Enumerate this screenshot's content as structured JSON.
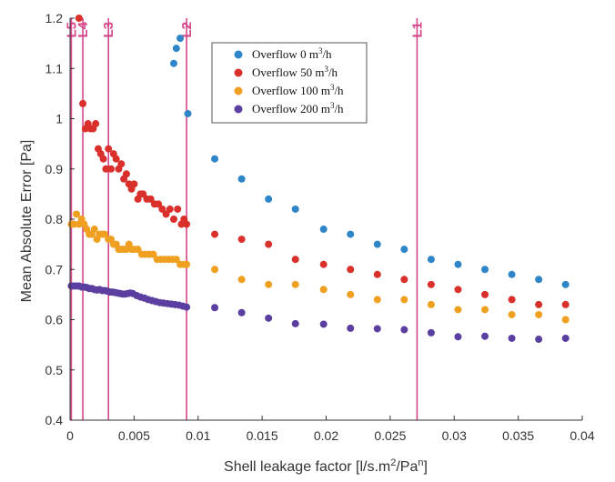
{
  "chart_data": {
    "type": "scatter",
    "xlabel": "Shell leakage factor [l/s.m",
    "xlabel_sup1": "2",
    "xlabel_mid": "/Pa",
    "xlabel_sup2": "n",
    "xlabel_end": "]",
    "ylabel": "Mean Absolute Error [Pa]",
    "xlim": [
      0,
      0.04
    ],
    "ylim": [
      0.4,
      1.2
    ],
    "x_ticks": [
      0,
      0.005,
      0.01,
      0.015,
      0.02,
      0.025,
      0.03,
      0.035,
      0.04
    ],
    "x_tick_labels": [
      "0",
      "0.005",
      "0.01",
      "0.015",
      "0.02",
      "0.025",
      "0.03",
      "0.035",
      "0.04"
    ],
    "y_ticks": [
      0.4,
      0.5,
      0.6,
      0.7,
      0.8,
      0.9,
      1.0,
      1.1,
      1.2
    ],
    "y_tick_labels": [
      "0.4",
      "0.5",
      "0.6",
      "0.7",
      "0.8",
      "0.9",
      "1",
      "1.1",
      "1.2"
    ],
    "grid": false,
    "legend_position": "top-center",
    "vertical_lines": [
      {
        "label": "L5",
        "x": 0.0001
      },
      {
        "label": "L4",
        "x": 0.001
      },
      {
        "label": "L3",
        "x": 0.003
      },
      {
        "label": "L2",
        "x": 0.0091
      },
      {
        "label": "L1",
        "x": 0.0271
      }
    ],
    "series": [
      {
        "name_prefix": "Overflow 0 m",
        "name_sup": "3",
        "name_suffix": "/h",
        "color": "#2e86c8",
        "points": [
          [
            0.0081,
            1.11
          ],
          [
            0.0083,
            1.14
          ],
          [
            0.0086,
            1.16
          ],
          [
            0.0092,
            1.01
          ],
          [
            0.0113,
            0.92
          ],
          [
            0.0134,
            0.88
          ],
          [
            0.0155,
            0.84
          ],
          [
            0.0176,
            0.82
          ],
          [
            0.0198,
            0.78
          ],
          [
            0.0219,
            0.77
          ],
          [
            0.024,
            0.75
          ],
          [
            0.0261,
            0.74
          ],
          [
            0.0282,
            0.72
          ],
          [
            0.0303,
            0.71
          ],
          [
            0.0324,
            0.7
          ],
          [
            0.0345,
            0.69
          ],
          [
            0.0366,
            0.68
          ],
          [
            0.0387,
            0.67
          ]
        ]
      },
      {
        "name_prefix": "Overflow 50 m",
        "name_sup": "3",
        "name_suffix": "/h",
        "color": "#d9302b",
        "points": [
          [
            0.0007,
            1.2
          ],
          [
            0.001,
            1.03
          ],
          [
            0.0012,
            0.98
          ],
          [
            0.0014,
            0.99
          ],
          [
            0.0016,
            0.98
          ],
          [
            0.0018,
            0.98
          ],
          [
            0.002,
            0.99
          ],
          [
            0.0022,
            0.94
          ],
          [
            0.0024,
            0.93
          ],
          [
            0.0026,
            0.92
          ],
          [
            0.0028,
            0.9
          ],
          [
            0.003,
            0.94
          ],
          [
            0.0032,
            0.9
          ],
          [
            0.0034,
            0.93
          ],
          [
            0.0036,
            0.92
          ],
          [
            0.0038,
            0.9
          ],
          [
            0.004,
            0.91
          ],
          [
            0.0042,
            0.88
          ],
          [
            0.0044,
            0.89
          ],
          [
            0.0046,
            0.87
          ],
          [
            0.0048,
            0.86
          ],
          [
            0.005,
            0.87
          ],
          [
            0.0053,
            0.84
          ],
          [
            0.0055,
            0.85
          ],
          [
            0.0057,
            0.85
          ],
          [
            0.006,
            0.84
          ],
          [
            0.0063,
            0.84
          ],
          [
            0.0066,
            0.83
          ],
          [
            0.0069,
            0.83
          ],
          [
            0.0072,
            0.82
          ],
          [
            0.0075,
            0.81
          ],
          [
            0.0078,
            0.82
          ],
          [
            0.0081,
            0.8
          ],
          [
            0.0084,
            0.82
          ],
          [
            0.0087,
            0.79
          ],
          [
            0.0089,
            0.8
          ],
          [
            0.0091,
            0.79
          ],
          [
            0.0113,
            0.77
          ],
          [
            0.0134,
            0.76
          ],
          [
            0.0155,
            0.75
          ],
          [
            0.0176,
            0.72
          ],
          [
            0.0198,
            0.71
          ],
          [
            0.0219,
            0.7
          ],
          [
            0.024,
            0.69
          ],
          [
            0.0261,
            0.68
          ],
          [
            0.0282,
            0.67
          ],
          [
            0.0303,
            0.66
          ],
          [
            0.0324,
            0.65
          ],
          [
            0.0345,
            0.64
          ],
          [
            0.0366,
            0.63
          ],
          [
            0.0387,
            0.63
          ]
        ]
      },
      {
        "name_prefix": "Overflow 100 m",
        "name_sup": "3",
        "name_suffix": "/h",
        "color": "#f0a020",
        "points": [
          [
            0.0001,
            0.79
          ],
          [
            0.0003,
            0.79
          ],
          [
            0.0005,
            0.81
          ],
          [
            0.0007,
            0.79
          ],
          [
            0.0009,
            0.8
          ],
          [
            0.0011,
            0.79
          ],
          [
            0.0013,
            0.78
          ],
          [
            0.0015,
            0.77
          ],
          [
            0.0017,
            0.77
          ],
          [
            0.0019,
            0.78
          ],
          [
            0.0021,
            0.76
          ],
          [
            0.0023,
            0.77
          ],
          [
            0.0025,
            0.77
          ],
          [
            0.0027,
            0.77
          ],
          [
            0.003,
            0.76
          ],
          [
            0.0032,
            0.76
          ],
          [
            0.0034,
            0.75
          ],
          [
            0.0036,
            0.75
          ],
          [
            0.0038,
            0.74
          ],
          [
            0.004,
            0.74
          ],
          [
            0.0042,
            0.74
          ],
          [
            0.0044,
            0.74
          ],
          [
            0.0046,
            0.75
          ],
          [
            0.0048,
            0.74
          ],
          [
            0.005,
            0.74
          ],
          [
            0.0053,
            0.74
          ],
          [
            0.0056,
            0.73
          ],
          [
            0.0059,
            0.73
          ],
          [
            0.0062,
            0.73
          ],
          [
            0.0065,
            0.73
          ],
          [
            0.0068,
            0.72
          ],
          [
            0.0071,
            0.72
          ],
          [
            0.0074,
            0.72
          ],
          [
            0.0077,
            0.72
          ],
          [
            0.008,
            0.72
          ],
          [
            0.0083,
            0.72
          ],
          [
            0.0086,
            0.71
          ],
          [
            0.0089,
            0.71
          ],
          [
            0.0091,
            0.71
          ],
          [
            0.0113,
            0.7
          ],
          [
            0.0134,
            0.68
          ],
          [
            0.0155,
            0.67
          ],
          [
            0.0176,
            0.67
          ],
          [
            0.0198,
            0.66
          ],
          [
            0.0219,
            0.65
          ],
          [
            0.024,
            0.64
          ],
          [
            0.0261,
            0.64
          ],
          [
            0.0282,
            0.63
          ],
          [
            0.0303,
            0.62
          ],
          [
            0.0324,
            0.62
          ],
          [
            0.0345,
            0.61
          ],
          [
            0.0366,
            0.61
          ],
          [
            0.0387,
            0.6
          ]
        ]
      },
      {
        "name_prefix": "Overflow 200 m",
        "name_sup": "3",
        "name_suffix": "/h",
        "color": "#5b3fa0",
        "points": [
          [
            0.0001,
            0.667
          ],
          [
            0.0003,
            0.667
          ],
          [
            0.0005,
            0.667
          ],
          [
            0.0007,
            0.667
          ],
          [
            0.0009,
            0.665
          ],
          [
            0.0011,
            0.665
          ],
          [
            0.0013,
            0.664
          ],
          [
            0.0015,
            0.662
          ],
          [
            0.0017,
            0.662
          ],
          [
            0.0019,
            0.66
          ],
          [
            0.0021,
            0.659
          ],
          [
            0.0023,
            0.66
          ],
          [
            0.0025,
            0.658
          ],
          [
            0.0027,
            0.658
          ],
          [
            0.0029,
            0.657
          ],
          [
            0.0031,
            0.655
          ],
          [
            0.0033,
            0.655
          ],
          [
            0.0035,
            0.654
          ],
          [
            0.0037,
            0.653
          ],
          [
            0.0039,
            0.652
          ],
          [
            0.0041,
            0.651
          ],
          [
            0.0043,
            0.651
          ],
          [
            0.0045,
            0.652
          ],
          [
            0.0047,
            0.653
          ],
          [
            0.0049,
            0.652
          ],
          [
            0.0052,
            0.648
          ],
          [
            0.0055,
            0.645
          ],
          [
            0.0058,
            0.643
          ],
          [
            0.0061,
            0.64
          ],
          [
            0.0064,
            0.638
          ],
          [
            0.0067,
            0.636
          ],
          [
            0.007,
            0.634
          ],
          [
            0.0073,
            0.633
          ],
          [
            0.0076,
            0.632
          ],
          [
            0.0079,
            0.631
          ],
          [
            0.0082,
            0.63
          ],
          [
            0.0085,
            0.629
          ],
          [
            0.0088,
            0.627
          ],
          [
            0.0091,
            0.625
          ],
          [
            0.0113,
            0.624
          ],
          [
            0.0134,
            0.614
          ],
          [
            0.0155,
            0.603
          ],
          [
            0.0176,
            0.592
          ],
          [
            0.0198,
            0.591
          ],
          [
            0.0219,
            0.583
          ],
          [
            0.024,
            0.582
          ],
          [
            0.0261,
            0.58
          ],
          [
            0.0282,
            0.574
          ],
          [
            0.0303,
            0.566
          ],
          [
            0.0324,
            0.567
          ],
          [
            0.0345,
            0.563
          ],
          [
            0.0366,
            0.561
          ],
          [
            0.0387,
            0.563
          ]
        ]
      }
    ]
  }
}
